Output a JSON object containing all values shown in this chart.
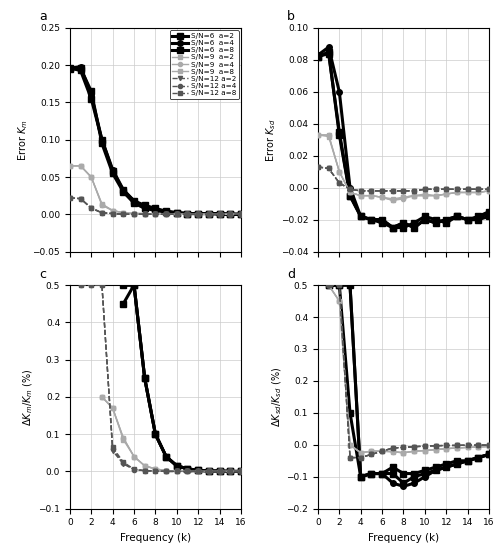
{
  "x": [
    0,
    1,
    2,
    3,
    4,
    5,
    6,
    7,
    8,
    9,
    10,
    11,
    12,
    13,
    14,
    15,
    16
  ],
  "panel_a": {
    "title": "a",
    "ylabel": "Error $K_m$",
    "ylim": [
      -0.05,
      0.25
    ],
    "yticks": [
      -0.05,
      0,
      0.05,
      0.1,
      0.15,
      0.2,
      0.25
    ],
    "series": [
      {
        "label": "S/N=6  a=2",
        "style": "solid",
        "color": "#000000",
        "lw": 2.2,
        "marker": "s",
        "ms": 4,
        "y": [
          0.195,
          0.196,
          0.165,
          0.095,
          0.055,
          0.03,
          0.015,
          0.008,
          0.005,
          0.003,
          0.002,
          0.001,
          0.001,
          0.001,
          0.001,
          0.0,
          0.0
        ]
      },
      {
        "label": "S/N=6  a=4",
        "style": "solid",
        "color": "#000000",
        "lw": 2.2,
        "marker": "o",
        "ms": 4,
        "y": [
          0.196,
          0.198,
          0.16,
          0.1,
          0.06,
          0.033,
          0.018,
          0.01,
          0.006,
          0.004,
          0.002,
          0.001,
          0.001,
          0.001,
          0.001,
          0.0,
          0.0
        ]
      },
      {
        "label": "S/N=6  a=8",
        "style": "solid",
        "color": "#000000",
        "lw": 2.2,
        "marker": "s",
        "ms": 4,
        "y": [
          0.196,
          0.193,
          0.155,
          0.1,
          0.058,
          0.032,
          0.018,
          0.012,
          0.008,
          0.004,
          0.002,
          0.001,
          0.001,
          0.001,
          0.0,
          0.0,
          0.0
        ]
      },
      {
        "label": "S/N=9  a=2",
        "style": "solid",
        "color": "#aaaaaa",
        "lw": 1.0,
        "marker": "s",
        "ms": 3,
        "y": [
          0.065,
          0.065,
          0.05,
          0.012,
          0.005,
          0.002,
          0.001,
          0.001,
          0.0,
          0.0,
          0.0,
          0.0,
          0.0,
          0.0,
          0.0,
          0.0,
          0.0
        ]
      },
      {
        "label": "S/N=9  a=4",
        "style": "solid",
        "color": "#aaaaaa",
        "lw": 1.0,
        "marker": "o",
        "ms": 3,
        "y": [
          0.065,
          0.065,
          0.05,
          0.013,
          0.005,
          0.002,
          0.001,
          0.001,
          0.0,
          0.0,
          0.0,
          0.0,
          0.0,
          0.0,
          0.0,
          0.0,
          0.0
        ]
      },
      {
        "label": "S/N=9  a=8",
        "style": "solid",
        "color": "#aaaaaa",
        "lw": 1.0,
        "marker": "s",
        "ms": 3,
        "y": [
          0.065,
          0.065,
          0.05,
          0.014,
          0.005,
          0.002,
          0.001,
          0.001,
          0.0,
          0.0,
          0.0,
          0.0,
          0.0,
          0.0,
          0.0,
          0.0,
          0.0
        ]
      },
      {
        "label": "S/N=12 a=2",
        "style": "dashed",
        "color": "#555555",
        "lw": 1.0,
        "marker": "v",
        "ms": 3,
        "y": [
          0.022,
          0.021,
          0.008,
          0.002,
          0.001,
          0.0,
          0.0,
          0.0,
          0.0,
          0.0,
          0.0,
          0.0,
          0.0,
          0.0,
          0.0,
          0.0,
          0.0
        ]
      },
      {
        "label": "S/N=12 a=4",
        "style": "dashed",
        "color": "#555555",
        "lw": 1.0,
        "marker": "o",
        "ms": 3,
        "y": [
          0.022,
          0.021,
          0.008,
          0.002,
          0.001,
          0.0,
          0.0,
          0.0,
          0.0,
          0.0,
          0.0,
          0.0,
          0.0,
          0.0,
          0.0,
          0.0,
          0.0
        ]
      },
      {
        "label": "S/N=12 a=8",
        "style": "dashed",
        "color": "#555555",
        "lw": 1.0,
        "marker": "s",
        "ms": 3,
        "y": [
          0.022,
          0.021,
          0.009,
          0.002,
          0.001,
          0.0,
          0.0,
          0.0,
          0.0,
          0.0,
          0.0,
          0.0,
          0.0,
          0.0,
          0.0,
          0.0,
          0.0
        ]
      }
    ]
  },
  "panel_b": {
    "title": "b",
    "ylabel": "Error $K_{sd}$",
    "ylim": [
      -0.04,
      0.1
    ],
    "yticks": [
      -0.04,
      -0.02,
      0,
      0.02,
      0.04,
      0.06,
      0.08,
      0.1
    ],
    "series": [
      {
        "label": "S/N=6  a=2",
        "style": "solid",
        "color": "#000000",
        "lw": 2.2,
        "marker": "s",
        "ms": 4,
        "y": [
          0.082,
          0.085,
          0.033,
          -0.005,
          -0.018,
          -0.02,
          -0.02,
          -0.025,
          -0.025,
          -0.022,
          -0.018,
          -0.02,
          -0.022,
          -0.018,
          -0.02,
          -0.02,
          -0.018
        ]
      },
      {
        "label": "S/N=6  a=4",
        "style": "solid",
        "color": "#000000",
        "lw": 2.2,
        "marker": "o",
        "ms": 4,
        "y": [
          0.083,
          0.088,
          0.06,
          0.0,
          -0.018,
          -0.02,
          -0.02,
          -0.025,
          -0.022,
          -0.025,
          -0.02,
          -0.022,
          -0.02,
          -0.018,
          -0.02,
          -0.02,
          -0.015
        ]
      },
      {
        "label": "S/N=6  a=8",
        "style": "solid",
        "color": "#000000",
        "lw": 2.2,
        "marker": "s",
        "ms": 4,
        "y": [
          0.082,
          0.084,
          0.035,
          -0.005,
          -0.018,
          -0.02,
          -0.022,
          -0.025,
          -0.022,
          -0.025,
          -0.02,
          -0.022,
          -0.02,
          -0.018,
          -0.02,
          -0.018,
          -0.015
        ]
      },
      {
        "label": "S/N=9  a=2",
        "style": "solid",
        "color": "#aaaaaa",
        "lw": 1.0,
        "marker": "s",
        "ms": 3,
        "y": [
          0.033,
          0.032,
          0.01,
          -0.003,
          -0.005,
          -0.005,
          -0.006,
          -0.008,
          -0.006,
          -0.005,
          -0.005,
          -0.005,
          -0.004,
          -0.003,
          -0.003,
          -0.003,
          -0.002
        ]
      },
      {
        "label": "S/N=9  a=4",
        "style": "solid",
        "color": "#aaaaaa",
        "lw": 1.0,
        "marker": "o",
        "ms": 3,
        "y": [
          0.033,
          0.033,
          0.01,
          -0.003,
          -0.005,
          -0.005,
          -0.006,
          -0.008,
          -0.007,
          -0.005,
          -0.005,
          -0.005,
          -0.004,
          -0.003,
          -0.003,
          -0.003,
          -0.002
        ]
      },
      {
        "label": "S/N=9  a=8",
        "style": "solid",
        "color": "#aaaaaa",
        "lw": 1.0,
        "marker": "s",
        "ms": 3,
        "y": [
          0.033,
          0.033,
          0.01,
          -0.003,
          -0.005,
          -0.005,
          -0.006,
          -0.007,
          -0.006,
          -0.005,
          -0.004,
          -0.005,
          -0.004,
          -0.003,
          -0.003,
          -0.003,
          -0.002
        ]
      },
      {
        "label": "S/N=12 a=2",
        "style": "dashed",
        "color": "#555555",
        "lw": 1.0,
        "marker": "v",
        "ms": 3,
        "y": [
          0.013,
          0.012,
          0.003,
          -0.001,
          -0.002,
          -0.002,
          -0.002,
          -0.002,
          -0.002,
          -0.002,
          -0.001,
          -0.001,
          -0.001,
          -0.001,
          -0.001,
          -0.001,
          -0.001
        ]
      },
      {
        "label": "S/N=12 a=4",
        "style": "dashed",
        "color": "#555555",
        "lw": 1.0,
        "marker": "o",
        "ms": 3,
        "y": [
          0.013,
          0.012,
          0.003,
          -0.001,
          -0.002,
          -0.002,
          -0.002,
          -0.002,
          -0.002,
          -0.002,
          -0.001,
          -0.001,
          -0.001,
          -0.001,
          -0.001,
          -0.001,
          -0.001
        ]
      },
      {
        "label": "S/N=12 a=8",
        "style": "dashed",
        "color": "#555555",
        "lw": 1.0,
        "marker": "s",
        "ms": 3,
        "y": [
          0.013,
          0.012,
          0.003,
          -0.001,
          -0.002,
          -0.002,
          -0.002,
          -0.002,
          -0.002,
          -0.002,
          -0.001,
          -0.001,
          -0.001,
          -0.001,
          -0.001,
          -0.001,
          -0.001
        ]
      }
    ]
  },
  "panel_c": {
    "title": "c",
    "ylabel": "$\\Delta K_m / K_m$ (%)",
    "ylim": [
      -0.1,
      0.5
    ],
    "yticks": [
      -0.1,
      0,
      0.1,
      0.2,
      0.3,
      0.4,
      0.5
    ],
    "series": [
      {
        "label": "S/N=6  a=2",
        "style": "solid",
        "color": "#000000",
        "lw": 2.2,
        "marker": "s",
        "ms": 4,
        "y": [
          null,
          null,
          null,
          null,
          null,
          0.5,
          0.5,
          0.25,
          0.1,
          0.04,
          0.015,
          0.007,
          0.003,
          0.001,
          0.001,
          0.0,
          0.0
        ]
      },
      {
        "label": "S/N=6  a=4",
        "style": "solid",
        "color": "#000000",
        "lw": 2.2,
        "marker": "o",
        "ms": 4,
        "y": [
          null,
          null,
          null,
          null,
          null,
          0.5,
          0.5,
          0.25,
          0.1,
          0.04,
          0.015,
          0.007,
          0.003,
          0.001,
          0.001,
          0.0,
          0.0
        ]
      },
      {
        "label": "S/N=6  a=8",
        "style": "solid",
        "color": "#000000",
        "lw": 2.2,
        "marker": "s",
        "ms": 4,
        "y": [
          null,
          null,
          null,
          null,
          null,
          0.45,
          0.5,
          0.25,
          0.1,
          0.04,
          0.015,
          0.007,
          0.003,
          0.001,
          0.001,
          0.0,
          0.0
        ]
      },
      {
        "label": "S/N=9  a=2",
        "style": "solid",
        "color": "#aaaaaa",
        "lw": 1.0,
        "marker": "s",
        "ms": 3,
        "y": [
          null,
          null,
          null,
          0.2,
          0.17,
          0.085,
          0.04,
          0.015,
          0.006,
          0.002,
          0.001,
          0.0,
          0.0,
          0.0,
          0.0,
          0.0,
          0.0
        ]
      },
      {
        "label": "S/N=9  a=4",
        "style": "solid",
        "color": "#aaaaaa",
        "lw": 1.0,
        "marker": "o",
        "ms": 3,
        "y": [
          null,
          null,
          null,
          0.2,
          0.17,
          0.09,
          0.04,
          0.015,
          0.007,
          0.002,
          0.001,
          0.0,
          0.0,
          0.0,
          0.0,
          0.0,
          0.0
        ]
      },
      {
        "label": "S/N=9  a=8",
        "style": "solid",
        "color": "#aaaaaa",
        "lw": 1.0,
        "marker": "s",
        "ms": 3,
        "y": [
          null,
          null,
          null,
          0.2,
          0.17,
          0.09,
          0.04,
          0.015,
          0.007,
          0.002,
          0.001,
          0.0,
          0.0,
          0.0,
          0.0,
          0.0,
          0.0
        ]
      },
      {
        "label": "S/N=12 a=2",
        "style": "dashed",
        "color": "#555555",
        "lw": 1.0,
        "marker": "v",
        "ms": 3,
        "y": [
          null,
          0.5,
          0.5,
          0.5,
          0.055,
          0.02,
          0.005,
          0.002,
          0.001,
          0.0,
          0.0,
          0.0,
          0.0,
          0.0,
          0.0,
          0.0,
          0.0
        ]
      },
      {
        "label": "S/N=12 a=4",
        "style": "dashed",
        "color": "#555555",
        "lw": 1.0,
        "marker": "o",
        "ms": 3,
        "y": [
          null,
          0.5,
          0.5,
          0.5,
          0.06,
          0.022,
          0.005,
          0.002,
          0.001,
          0.0,
          0.0,
          0.0,
          0.0,
          0.0,
          0.0,
          0.0,
          0.0
        ]
      },
      {
        "label": "S/N=12 a=8",
        "style": "dashed",
        "color": "#555555",
        "lw": 1.0,
        "marker": "s",
        "ms": 3,
        "y": [
          null,
          0.5,
          0.5,
          0.5,
          0.065,
          0.025,
          0.006,
          0.002,
          0.001,
          0.0,
          0.0,
          0.0,
          0.0,
          0.0,
          0.0,
          0.0,
          0.0
        ]
      }
    ]
  },
  "panel_d": {
    "title": "d",
    "ylabel": "$\\Delta K_{sd} / K_{sd}$ (%)",
    "ylim": [
      -0.2,
      0.5
    ],
    "yticks": [
      -0.2,
      -0.1,
      0,
      0.1,
      0.2,
      0.3,
      0.4,
      0.5
    ],
    "series": [
      {
        "label": "S/N=6  a=2",
        "style": "solid",
        "color": "#000000",
        "lw": 2.2,
        "marker": "s",
        "ms": 4,
        "y": [
          null,
          0.5,
          0.5,
          0.5,
          -0.1,
          -0.09,
          -0.09,
          -0.09,
          -0.12,
          -0.1,
          -0.09,
          -0.08,
          -0.07,
          -0.06,
          -0.05,
          -0.04,
          -0.03
        ]
      },
      {
        "label": "S/N=6  a=4",
        "style": "solid",
        "color": "#000000",
        "lw": 2.2,
        "marker": "o",
        "ms": 4,
        "y": [
          null,
          0.5,
          0.5,
          0.5,
          -0.1,
          -0.09,
          -0.09,
          -0.12,
          -0.13,
          -0.12,
          -0.1,
          -0.08,
          -0.07,
          -0.06,
          -0.05,
          -0.04,
          -0.03
        ]
      },
      {
        "label": "S/N=6  a=8",
        "style": "solid",
        "color": "#000000",
        "lw": 2.2,
        "marker": "s",
        "ms": 4,
        "y": [
          null,
          0.5,
          0.5,
          0.1,
          -0.1,
          -0.09,
          -0.09,
          -0.07,
          -0.09,
          -0.09,
          -0.08,
          -0.07,
          -0.06,
          -0.05,
          -0.05,
          -0.04,
          -0.03
        ]
      },
      {
        "label": "S/N=9  a=2",
        "style": "solid",
        "color": "#aaaaaa",
        "lw": 1.0,
        "marker": "s",
        "ms": 3,
        "y": [
          null,
          0.5,
          0.45,
          0.0,
          -0.025,
          -0.02,
          -0.02,
          -0.02,
          -0.025,
          -0.02,
          -0.018,
          -0.015,
          -0.012,
          -0.01,
          -0.008,
          -0.007,
          -0.005
        ]
      },
      {
        "label": "S/N=9  a=4",
        "style": "solid",
        "color": "#aaaaaa",
        "lw": 1.0,
        "marker": "o",
        "ms": 3,
        "y": [
          null,
          0.5,
          0.45,
          0.0,
          -0.025,
          -0.02,
          -0.02,
          -0.022,
          -0.025,
          -0.02,
          -0.018,
          -0.015,
          -0.012,
          -0.01,
          -0.008,
          -0.007,
          -0.005
        ]
      },
      {
        "label": "S/N=9  a=8",
        "style": "solid",
        "color": "#aaaaaa",
        "lw": 1.0,
        "marker": "s",
        "ms": 3,
        "y": [
          null,
          0.5,
          0.45,
          0.0,
          -0.025,
          -0.02,
          -0.02,
          -0.022,
          -0.025,
          -0.02,
          -0.018,
          -0.015,
          -0.012,
          -0.01,
          -0.008,
          -0.007,
          -0.005
        ]
      },
      {
        "label": "S/N=12 a=2",
        "style": "dashed",
        "color": "#555555",
        "lw": 1.0,
        "marker": "v",
        "ms": 3,
        "y": [
          null,
          0.5,
          0.5,
          -0.04,
          -0.04,
          -0.03,
          -0.02,
          -0.01,
          -0.008,
          -0.006,
          -0.004,
          -0.003,
          -0.002,
          -0.002,
          -0.001,
          -0.001,
          -0.001
        ]
      },
      {
        "label": "S/N=12 a=4",
        "style": "dashed",
        "color": "#555555",
        "lw": 1.0,
        "marker": "o",
        "ms": 3,
        "y": [
          null,
          0.5,
          0.5,
          -0.04,
          -0.04,
          -0.03,
          -0.02,
          -0.01,
          -0.008,
          -0.006,
          -0.004,
          -0.003,
          -0.002,
          -0.002,
          -0.001,
          -0.001,
          -0.001
        ]
      },
      {
        "label": "S/N=12 a=8",
        "style": "dashed",
        "color": "#555555",
        "lw": 1.0,
        "marker": "s",
        "ms": 3,
        "y": [
          null,
          0.5,
          0.5,
          -0.04,
          -0.04,
          -0.03,
          -0.02,
          -0.01,
          -0.008,
          -0.006,
          -0.004,
          -0.003,
          -0.002,
          -0.002,
          -0.001,
          -0.001,
          -0.001
        ]
      }
    ]
  },
  "legend_labels": [
    "S/N=6  a=2",
    "S/N=6  a=4",
    "S/N=6  a=8",
    "S/N=9  a=2",
    "S/N=9  a=4",
    "S/N=9  a=8",
    "S/N=12 a=2",
    "S/N=12 a=4",
    "S/N=12 a=8"
  ],
  "xlabel": "Frequency (k)",
  "xlim": [
    0,
    16
  ],
  "xticks": [
    0,
    2,
    4,
    6,
    8,
    10,
    12,
    14,
    16
  ]
}
